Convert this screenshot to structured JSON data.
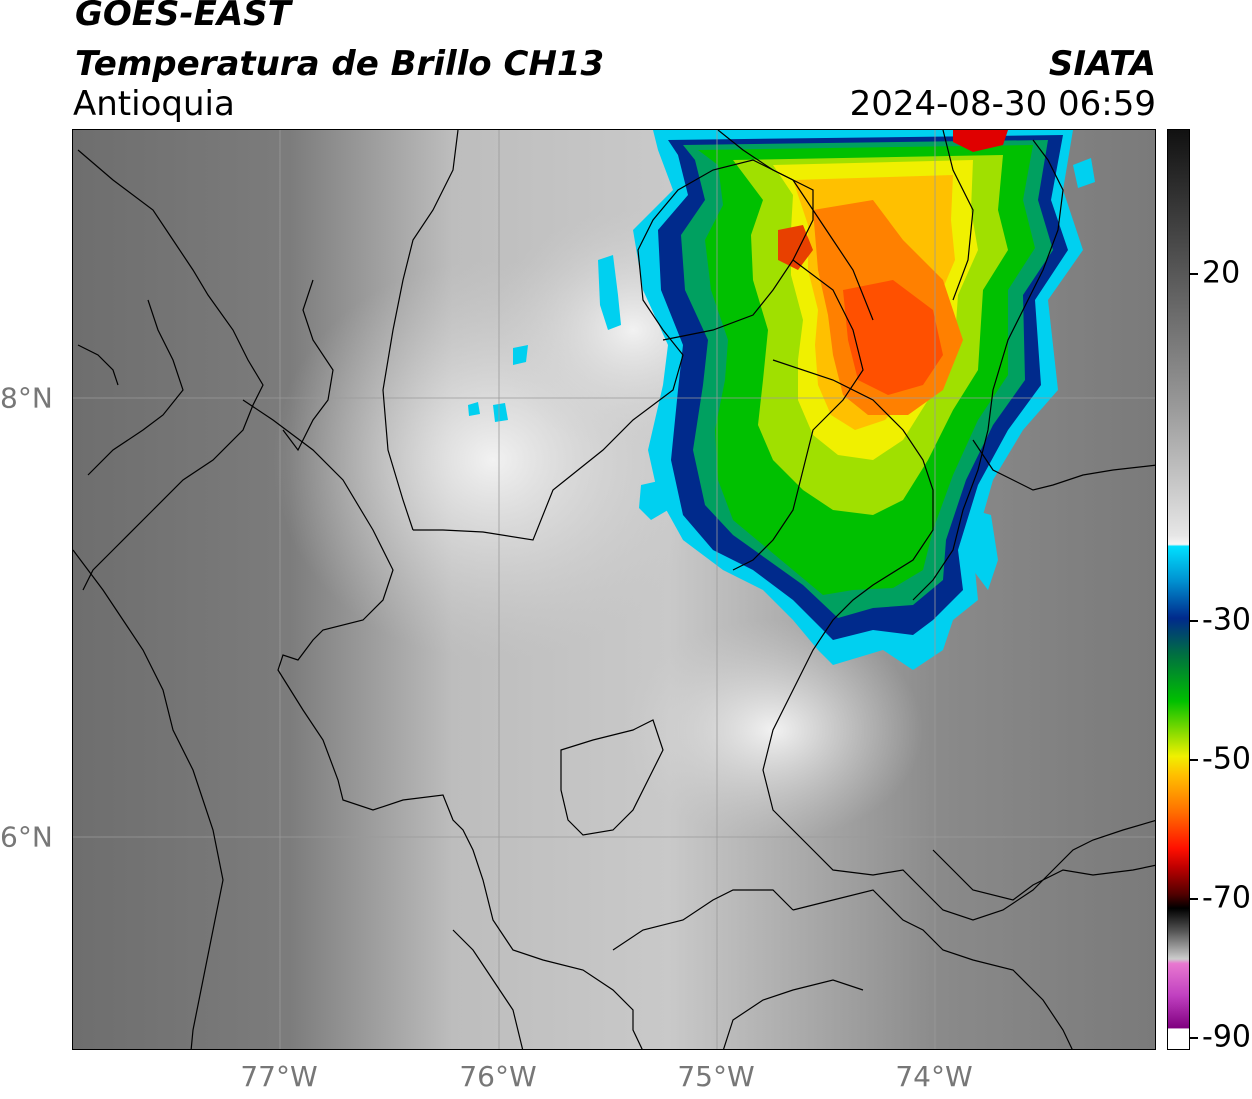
{
  "header": {
    "satellite": "GOES-EAST",
    "product": "Temperatura de Brillo CH13",
    "region": "Antioquia",
    "agency": "SIATA",
    "datetime": "2024-08-30 06:59"
  },
  "map": {
    "lon_ticks": [
      "77°W",
      "76°W",
      "75°W",
      "74°W"
    ],
    "lat_ticks": [
      "8°N",
      "6°N"
    ],
    "lon_range": [
      -77.95,
      -73.0
    ],
    "lat_range": [
      5.0,
      9.2
    ],
    "grid": true
  },
  "colorbar": {
    "ticks": [
      "20",
      "-30",
      "-50",
      "-70",
      "-90"
    ],
    "colors": {
      "warm_gray_top": "#111111",
      "cyan": "#00d0f0",
      "dark_blue": "#002a8c",
      "green": "#00c000",
      "yellow": "#f0f000",
      "orange": "#ff8000",
      "red": "#e00000",
      "magenta": "#e040c0",
      "purple": "#800080"
    }
  }
}
